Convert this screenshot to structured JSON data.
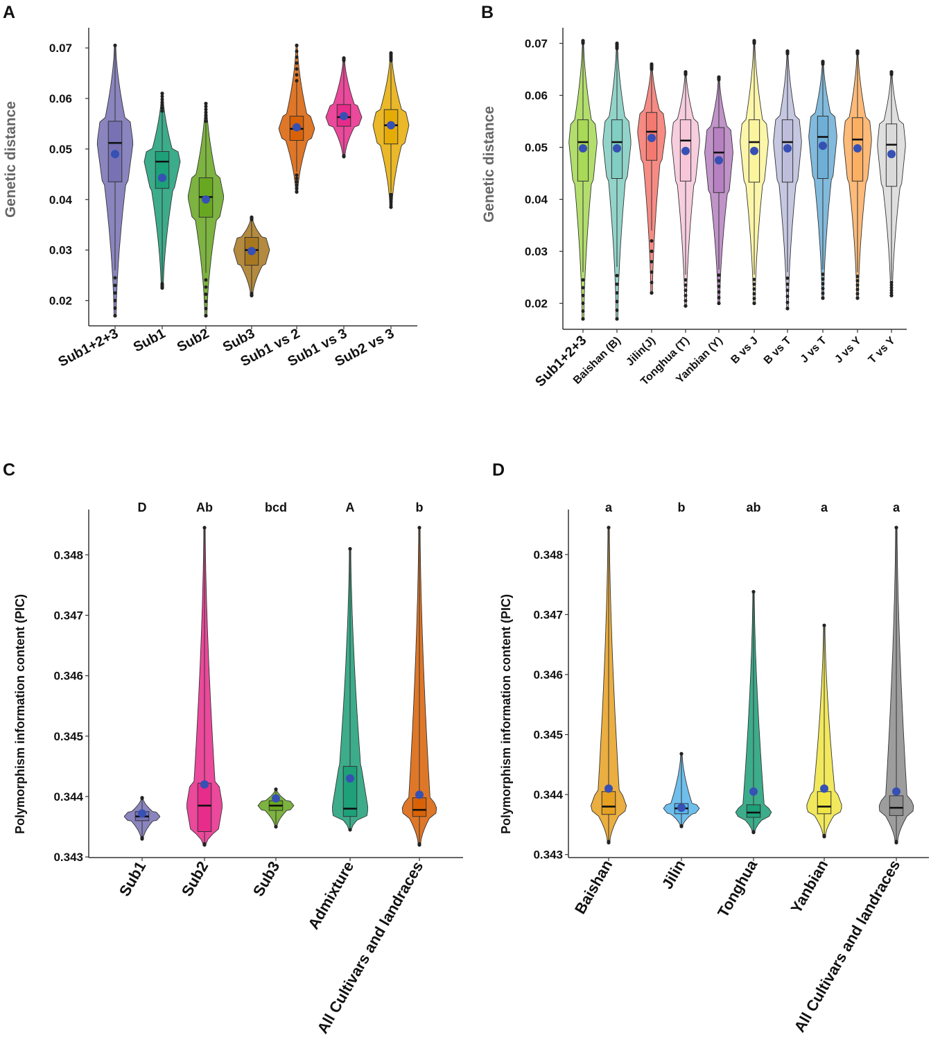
{
  "chart_data": [
    {
      "panel": "A",
      "type": "violin",
      "ylabel": "Genetic distance",
      "ylim": [
        0.015,
        0.074
      ],
      "yticks": [
        0.02,
        0.03,
        0.04,
        0.05,
        0.06,
        0.07
      ],
      "ytick_labels": [
        "0.02",
        "0.03",
        "0.04",
        "0.05",
        "0.06",
        "0.07"
      ],
      "categories": [
        "Sub1+2+3",
        "Sub1",
        "Sub2",
        "Sub3",
        "Sub1 vs 2",
        "Sub1 vs 3",
        "Sub2 vs 3"
      ],
      "colors": [
        "#7570b3",
        "#1b9e77",
        "#66a61e",
        "#a6761d",
        "#d95f02",
        "#e7298a",
        "#e6ab02"
      ],
      "groups": [
        {
          "min": 0.017,
          "max": 0.0705,
          "q1": 0.0435,
          "median": 0.0512,
          "q3": 0.0555,
          "mean": 0.049,
          "wlo": 0.026,
          "whi": 0.0705
        },
        {
          "min": 0.0225,
          "max": 0.061,
          "q1": 0.0422,
          "median": 0.0475,
          "q3": 0.0495,
          "mean": 0.0443,
          "wlo": 0.0235,
          "whi": 0.0575
        },
        {
          "min": 0.017,
          "max": 0.059,
          "q1": 0.0365,
          "median": 0.0405,
          "q3": 0.0443,
          "mean": 0.04,
          "wlo": 0.0255,
          "whi": 0.0555
        },
        {
          "min": 0.021,
          "max": 0.0365,
          "q1": 0.027,
          "median": 0.03,
          "q3": 0.0325,
          "mean": 0.0298,
          "wlo": 0.0215,
          "whi": 0.036
        },
        {
          "min": 0.0415,
          "max": 0.0705,
          "q1": 0.0517,
          "median": 0.054,
          "q3": 0.0565,
          "mean": 0.0543,
          "wlo": 0.0455,
          "whi": 0.0635
        },
        {
          "min": 0.0485,
          "max": 0.068,
          "q1": 0.0545,
          "median": 0.0563,
          "q3": 0.0588,
          "mean": 0.0565,
          "wlo": 0.0487,
          "whi": 0.0675
        },
        {
          "min": 0.0385,
          "max": 0.069,
          "q1": 0.051,
          "median": 0.0547,
          "q3": 0.0578,
          "mean": 0.0547,
          "wlo": 0.0415,
          "whi": 0.0675
        }
      ]
    },
    {
      "panel": "B",
      "type": "violin",
      "ylabel": "Genetic distance",
      "ylim": [
        0.015,
        0.073
      ],
      "yticks": [
        0.02,
        0.03,
        0.04,
        0.05,
        0.06,
        0.07
      ],
      "ytick_labels": [
        "0.02",
        "0.03",
        "0.04",
        "0.05",
        "0.06",
        "0.07"
      ],
      "categories": [
        "Sub1+2+3",
        "Baishan (B)",
        "Jilin(J)",
        "Tonghua (T)",
        "Yanbian (Y)",
        "B vs J",
        "B vs T",
        "J vs T",
        "J vs Y",
        "T vs Y"
      ],
      "colors": [
        "#a6d854",
        "#80cdc1",
        "#f4776e",
        "#f6c6d8",
        "#b580c0",
        "#fbf59b",
        "#bcbddc",
        "#6baed6",
        "#fdae61",
        "#d9d9d9"
      ],
      "groups": [
        {
          "min": 0.017,
          "max": 0.0705,
          "q1": 0.0435,
          "median": 0.051,
          "q3": 0.0553,
          "mean": 0.0498,
          "wlo": 0.026,
          "whi": 0.07
        },
        {
          "min": 0.017,
          "max": 0.07,
          "q1": 0.044,
          "median": 0.051,
          "q3": 0.0553,
          "mean": 0.0498,
          "wlo": 0.027,
          "whi": 0.069
        },
        {
          "min": 0.022,
          "max": 0.066,
          "q1": 0.0475,
          "median": 0.053,
          "q3": 0.0567,
          "mean": 0.0518,
          "wlo": 0.034,
          "whi": 0.065
        },
        {
          "min": 0.0195,
          "max": 0.0645,
          "q1": 0.0435,
          "median": 0.0513,
          "q3": 0.0553,
          "mean": 0.0493,
          "wlo": 0.0255,
          "whi": 0.064
        },
        {
          "min": 0.02,
          "max": 0.0635,
          "q1": 0.0413,
          "median": 0.049,
          "q3": 0.0538,
          "mean": 0.0475,
          "wlo": 0.0265,
          "whi": 0.063
        },
        {
          "min": 0.02,
          "max": 0.0705,
          "q1": 0.0433,
          "median": 0.051,
          "q3": 0.0553,
          "mean": 0.0493,
          "wlo": 0.0255,
          "whi": 0.07
        },
        {
          "min": 0.019,
          "max": 0.0685,
          "q1": 0.0433,
          "median": 0.051,
          "q3": 0.0553,
          "mean": 0.0498,
          "wlo": 0.026,
          "whi": 0.068
        },
        {
          "min": 0.021,
          "max": 0.0665,
          "q1": 0.044,
          "median": 0.052,
          "q3": 0.056,
          "mean": 0.0503,
          "wlo": 0.0265,
          "whi": 0.066
        },
        {
          "min": 0.021,
          "max": 0.0685,
          "q1": 0.0435,
          "median": 0.0515,
          "q3": 0.0557,
          "mean": 0.0498,
          "wlo": 0.026,
          "whi": 0.068
        },
        {
          "min": 0.0215,
          "max": 0.0645,
          "q1": 0.0425,
          "median": 0.0505,
          "q3": 0.0545,
          "mean": 0.0487,
          "wlo": 0.0245,
          "whi": 0.064
        }
      ]
    },
    {
      "panel": "C",
      "type": "violin",
      "ylabel": "Polymorphism information content (PIC)",
      "ylim": [
        0.34299,
        0.34875
      ],
      "yticks": [
        0.343,
        0.344,
        0.345,
        0.346,
        0.347,
        0.348
      ],
      "ytick_labels": [
        "0.343",
        "0.344",
        "0.345",
        "0.346",
        "0.347",
        "0.348"
      ],
      "categories": [
        "Sub1",
        "Sub2",
        "Sub3",
        "Admixture",
        "All Cultivars and landraces"
      ],
      "significance": [
        "D",
        "Ab",
        "bcd",
        "A",
        "b"
      ],
      "colors": [
        "#7570b3",
        "#e7298a",
        "#66a61e",
        "#1b9e77",
        "#d95f02"
      ],
      "groups": [
        {
          "min": 0.3433,
          "max": 0.34398,
          "q1": 0.3436,
          "median": 0.34367,
          "q3": 0.34375,
          "mean": 0.34372,
          "wlo": 0.34332,
          "whi": 0.34397
        },
        {
          "min": 0.3432,
          "max": 0.34845,
          "q1": 0.34342,
          "median": 0.34385,
          "q3": 0.34422,
          "mean": 0.3442,
          "wlo": 0.34322,
          "whi": 0.34845
        },
        {
          "min": 0.3435,
          "max": 0.34412,
          "q1": 0.34377,
          "median": 0.34385,
          "q3": 0.34393,
          "mean": 0.34397,
          "wlo": 0.3435,
          "whi": 0.34412
        },
        {
          "min": 0.34345,
          "max": 0.3481,
          "q1": 0.34367,
          "median": 0.3438,
          "q3": 0.3445,
          "mean": 0.3443,
          "wlo": 0.34345,
          "whi": 0.3481
        },
        {
          "min": 0.3432,
          "max": 0.34845,
          "q1": 0.34367,
          "median": 0.34378,
          "q3": 0.34398,
          "mean": 0.34403,
          "wlo": 0.34322,
          "whi": 0.34845
        }
      ]
    },
    {
      "panel": "D",
      "type": "violin",
      "ylabel": "Polymorphism information content (PIC)",
      "ylim": [
        0.34295,
        0.34875
      ],
      "yticks": [
        0.343,
        0.344,
        0.345,
        0.346,
        0.347,
        0.348
      ],
      "ytick_labels": [
        "0.343",
        "0.344",
        "0.345",
        "0.346",
        "0.347",
        "0.348"
      ],
      "categories": [
        "Baishan",
        "Jilin",
        "Tonghua",
        "Yanbian",
        "All Cultivars and landraces"
      ],
      "significance": [
        "a",
        "b",
        "ab",
        "a",
        "a"
      ],
      "colors": [
        "#e6a020",
        "#56b4e9",
        "#1b9e77",
        "#f0e442",
        "#8c8c8c"
      ],
      "groups": [
        {
          "min": 0.3432,
          "max": 0.34845,
          "q1": 0.34367,
          "median": 0.3438,
          "q3": 0.34405,
          "mean": 0.3441,
          "wlo": 0.34322,
          "whi": 0.34845
        },
        {
          "min": 0.34347,
          "max": 0.34468,
          "q1": 0.34368,
          "median": 0.34377,
          "q3": 0.34385,
          "mean": 0.34378,
          "wlo": 0.34348,
          "whi": 0.34468
        },
        {
          "min": 0.34337,
          "max": 0.34738,
          "q1": 0.34362,
          "median": 0.3437,
          "q3": 0.34383,
          "mean": 0.34405,
          "wlo": 0.34338,
          "whi": 0.34738
        },
        {
          "min": 0.3433,
          "max": 0.34682,
          "q1": 0.34368,
          "median": 0.3438,
          "q3": 0.34405,
          "mean": 0.3441,
          "wlo": 0.34332,
          "whi": 0.34682
        },
        {
          "min": 0.3432,
          "max": 0.34845,
          "q1": 0.34365,
          "median": 0.34378,
          "q3": 0.34398,
          "mean": 0.34405,
          "wlo": 0.34322,
          "whi": 0.34845
        }
      ]
    }
  ],
  "mean_point_color": "#3650b4",
  "outlier_color": "#222222"
}
